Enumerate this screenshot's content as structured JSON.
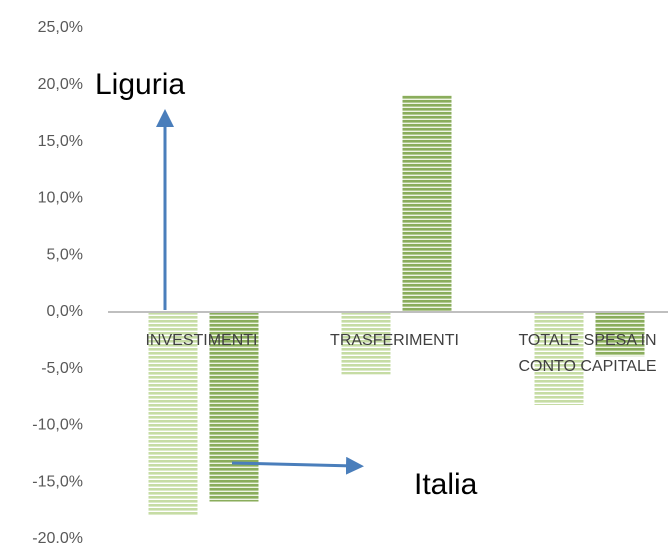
{
  "chart_data": {
    "type": "bar",
    "categories": [
      "INVESTIMENTI",
      "TRASFERIMENTI",
      "TOTALE SPESA IN CONTO CAPITALE"
    ],
    "series": [
      {
        "name": "Liguria",
        "color": "#c6dca4",
        "values": [
          -17.9,
          -5.5,
          -8.2
        ]
      },
      {
        "name": "Italia",
        "color": "#8aad5c",
        "values": [
          -16.7,
          19.1,
          -3.9
        ]
      }
    ],
    "ylim": [
      -20,
      25
    ],
    "yticks": [
      {
        "value": 25,
        "label": "25,0%"
      },
      {
        "value": 20,
        "label": "20,0%"
      },
      {
        "value": 15,
        "label": "15,0%"
      },
      {
        "value": 10,
        "label": "10,0%"
      },
      {
        "value": 5,
        "label": "5,0%"
      },
      {
        "value": 0,
        "label": "0,0%"
      },
      {
        "value": -5,
        "label": "-5,0%"
      },
      {
        "value": -10,
        "label": "-10,0%"
      },
      {
        "value": -15,
        "label": "-15,0%"
      },
      {
        "value": -20,
        "label": "-20.0%"
      }
    ],
    "grid": false
  }
}
